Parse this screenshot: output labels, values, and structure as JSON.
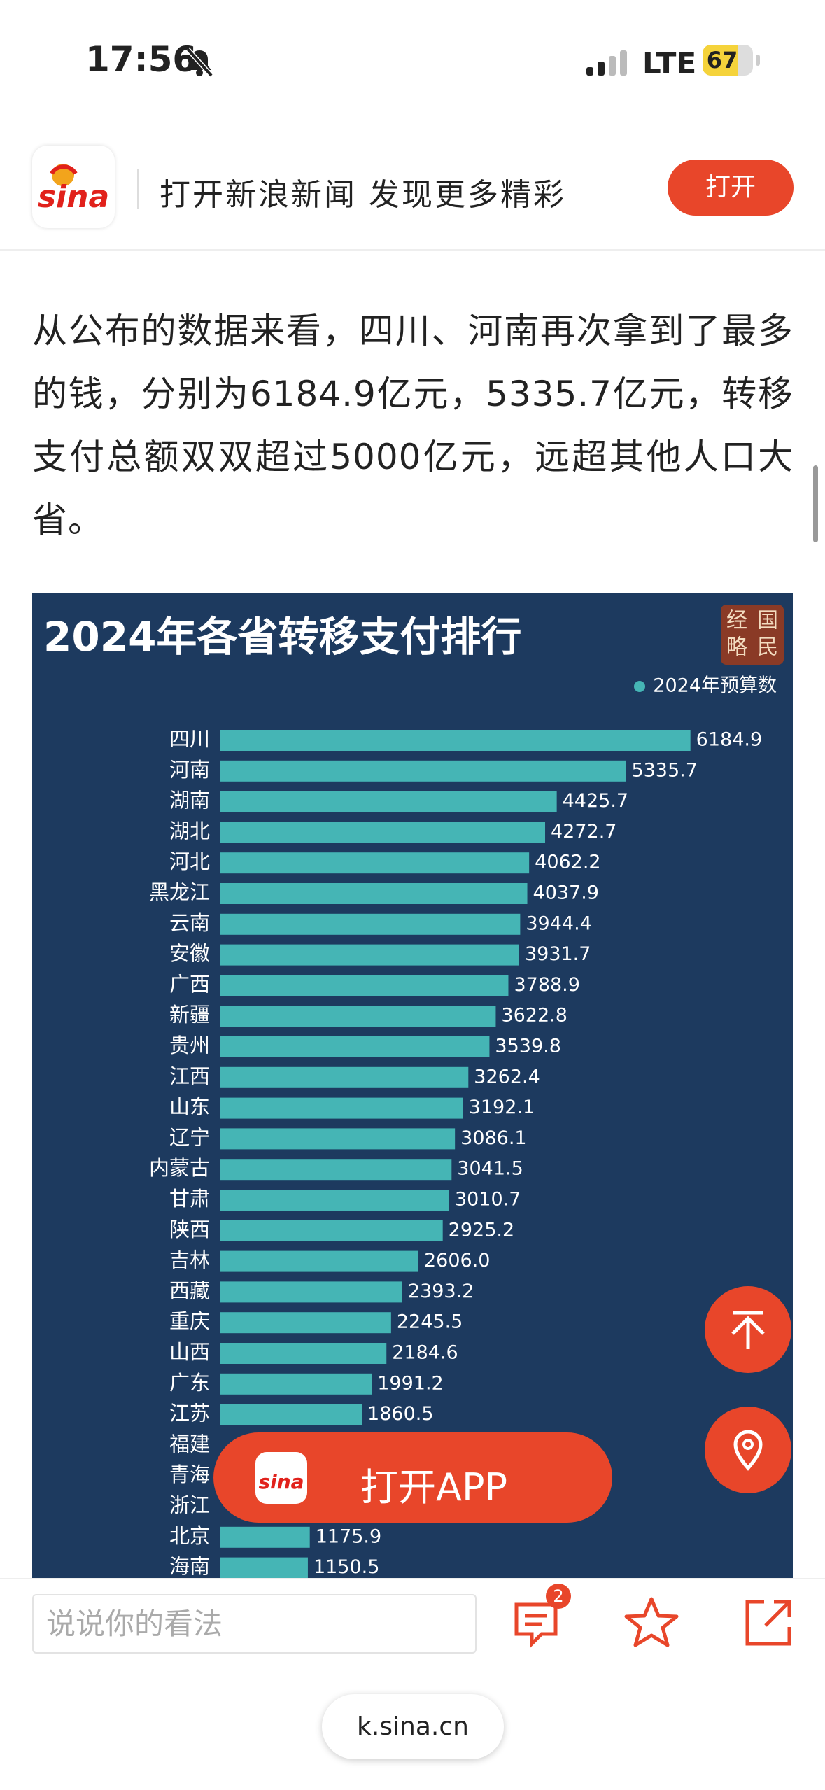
{
  "status": {
    "time": "17:56",
    "network": "LTE",
    "battery": "67"
  },
  "banner": {
    "logo": "sina",
    "slogan": "打开新浪新闻 发现更多精彩",
    "button": "打开"
  },
  "article": {
    "paragraph": "从公布的数据来看，四川、河南再次拿到了最多的钱，分别为6184.9亿元，5335.7亿元，转移支付总额双双超过5000亿元，远超其他人口大省。"
  },
  "chart_data": {
    "type": "bar",
    "orientation": "horizontal",
    "title": "2024年各省转移支付排行",
    "seal": [
      "经",
      "国",
      "略",
      "民"
    ],
    "categories": [
      "四川",
      "河南",
      "湖南",
      "湖北",
      "河北",
      "黑龙江",
      "云南",
      "安徽",
      "广西",
      "新疆",
      "贵州",
      "江西",
      "山东",
      "辽宁",
      "内蒙古",
      "甘肃",
      "陕西",
      "吉林",
      "西藏",
      "重庆",
      "山西",
      "广东",
      "江苏",
      "福建",
      "青海",
      "浙江",
      "北京",
      "海南"
    ],
    "series": [
      {
        "name": "2024年预算数",
        "color": "#45b5b5",
        "values": [
          6184.9,
          5335.7,
          4425.7,
          4272.7,
          4062.2,
          4037.9,
          3944.4,
          3931.7,
          3788.9,
          3622.8,
          3539.8,
          3262.4,
          3192.1,
          3086.1,
          3041.5,
          3010.7,
          2925.2,
          2606.0,
          2393.2,
          2245.5,
          2184.6,
          1991.2,
          1860.5,
          null,
          null,
          null,
          1175.9,
          1150.5
        ],
        "value_labels": [
          "6184.9",
          "5335.7",
          "4425.7",
          "4272.7",
          "4062.2",
          "4037.9",
          "3944.4",
          "3931.7",
          "3788.9",
          "3622.8",
          "3539.8",
          "3262.4",
          "3192.1",
          "3086.1",
          "3041.5",
          "3010.7",
          "2925.2",
          "2606.0",
          "2393.2",
          "2245.5",
          "2184.6",
          "1991.2",
          "1860.5",
          null,
          null,
          null,
          "1175.9",
          "1150.5"
        ]
      }
    ]
  },
  "overlay": {
    "open_app": "打开APP"
  },
  "bottom": {
    "comment_placeholder": "说说你的看法",
    "comment_count": "2",
    "url": "k.sina.cn"
  }
}
